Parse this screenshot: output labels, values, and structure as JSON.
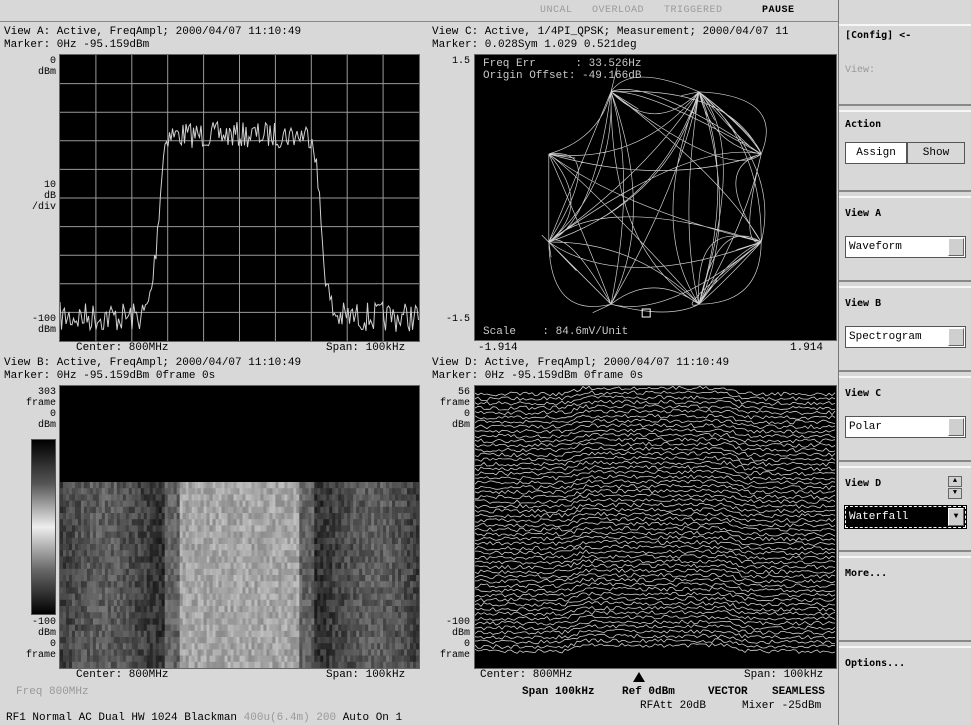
{
  "status": {
    "uncal": "UNCAL",
    "overload": "OVERLOAD",
    "triggered": "TRIGGERED",
    "pause": "PAUSE"
  },
  "view_a": {
    "header": "View A: Active, FreqAmpl; 2000/04/07 11:10:49",
    "marker": "Marker: 0Hz   -95.159dBm",
    "ytop": "0",
    "ytop_unit": "dBm",
    "ymid": "10",
    "ymid_unit1": "dB",
    "ymid_unit2": "/div",
    "ybot": "-100",
    "ybot_unit": "dBm",
    "center": "Center: 800MHz",
    "span": "Span: 100kHz"
  },
  "view_b": {
    "header": "View B: Active, FreqAmpl; 2000/04/07 11:10:49",
    "marker": "Marker: 0Hz   -95.159dBm   0frame   0s",
    "frame_top": "303",
    "frame_top_unit": "frame",
    "db_top": "0",
    "db_top_unit": "dBm",
    "db_bot": "-100",
    "db_bot_unit": "dBm",
    "frame_bot": "0",
    "frame_bot_unit": "frame",
    "center": "Center: 800MHz",
    "span": "Span: 100kHz"
  },
  "view_c": {
    "header": "View C: Active, 1/4PI_QPSK; Measurement; 2000/04/07 11",
    "marker": "Marker: 0.028Sym   1.029   0.521deg",
    "ytop": "1.5",
    "ybot": "-1.5",
    "freq_err": "Freq Err      : 33.526Hz",
    "origin_offset": "Origin Offset: -49.166dB",
    "scale": "Scale    : 84.6mV/Unit",
    "xmin": "-1.914",
    "xmax": "1.914"
  },
  "view_d": {
    "header": "View D: Active, FreqAmpl; 2000/04/07 11:10:49",
    "marker": "Marker: 0Hz   -95.159dBm   0frame   0s",
    "frame_top": "56",
    "frame_top_unit": "frame",
    "db_top": "0",
    "db_top_unit": "dBm",
    "db_bot": "-100",
    "db_bot_unit": "dBm",
    "frame_bot": "0",
    "frame_bot_unit": "frame",
    "center": "Center: 800MHz",
    "span": "Span: 100kHz"
  },
  "bottom": {
    "freq": "Freq 800MHz",
    "span": "Span 100kHz",
    "ref": "Ref 0dBm",
    "vector": "VECTOR",
    "seamless": "SEAMLESS",
    "rfatt": "RFAtt 20dB",
    "mixer": "Mixer -25dBm",
    "line2_a": "RF1 Normal AC Dual HW 1024 Blackman",
    "line2_b": "400u(6.4m)",
    "line2_c": "200",
    "line2_d": "Auto On 1"
  },
  "sidebar": {
    "config": "[Config] <-",
    "view_label": "View:",
    "action_title": "Action",
    "assign": "Assign",
    "show": "Show",
    "view_a_title": "View A",
    "view_a_value": "Waveform",
    "view_b_title": "View B",
    "view_b_value": "Spectrogram",
    "view_c_title": "View C",
    "view_c_value": "Polar",
    "view_d_title": "View D",
    "view_d_value": "Waterfall",
    "more": "More...",
    "options": "Options..."
  },
  "colors": {
    "background": "#d8d8d8",
    "plot_bg": "#000000",
    "trace": "#d0d0d0",
    "grid": "#9a9a9a"
  }
}
